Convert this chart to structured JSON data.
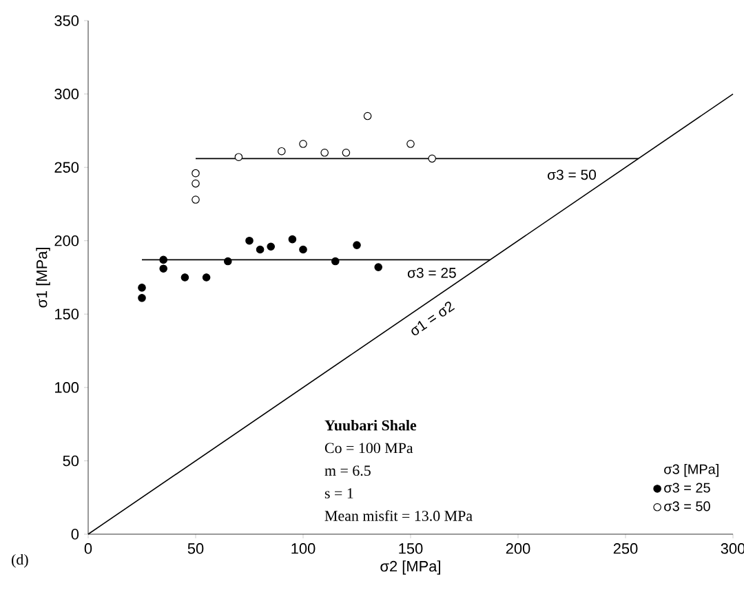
{
  "chart_data": {
    "type": "scatter",
    "xlabel": "σ2 [MPa]",
    "ylabel": "σ1 [MPa]",
    "legend_title": "σ3 [MPa]",
    "xlim": [
      0,
      300
    ],
    "ylim": [
      0,
      350
    ],
    "xticks": [
      0,
      50,
      100,
      150,
      200,
      250,
      300
    ],
    "yticks": [
      0,
      50,
      100,
      150,
      200,
      250,
      300,
      350
    ],
    "grid": false,
    "legend": "bottom right",
    "series": [
      {
        "name": "σ3 = 25",
        "color": "#000000",
        "marker": "circle",
        "x": [
          25,
          25,
          35,
          35,
          45,
          55,
          65,
          75,
          80,
          85,
          95,
          100,
          115,
          125,
          135
        ],
        "values": [
          168,
          161,
          187,
          181,
          175,
          175,
          186,
          200,
          194,
          196,
          201,
          194,
          186,
          197,
          182
        ]
      },
      {
        "name": "σ3 = 50",
        "color": "#ffffff",
        "marker": "circle",
        "x": [
          50,
          50,
          50,
          70,
          90,
          100,
          110,
          120,
          130,
          150,
          160
        ],
        "values": [
          246,
          239,
          228,
          257,
          261,
          266,
          260,
          260,
          285,
          266,
          256
        ]
      },
      {
        "type": "line",
        "color": "#000000",
        "marker": "none",
        "x": [
          25,
          187
        ],
        "values": [
          187,
          187
        ]
      },
      {
        "type": "line",
        "color": "#000000",
        "marker": "none",
        "x": [
          50,
          256
        ],
        "values": [
          256,
          256
        ]
      },
      {
        "type": "line",
        "color": "#000000",
        "marker": "none",
        "x": [
          0,
          300
        ],
        "values": [
          0,
          300
        ]
      }
    ],
    "annotations": [
      "σ3 = 25",
      "σ3 = 50",
      "σ1 = σ2",
      "Yuubari Shale",
      "Co = 100 MPa",
      "m = 6.5",
      "s = 1",
      "Mean misfit = 13.0 MPa",
      "(d)"
    ]
  }
}
